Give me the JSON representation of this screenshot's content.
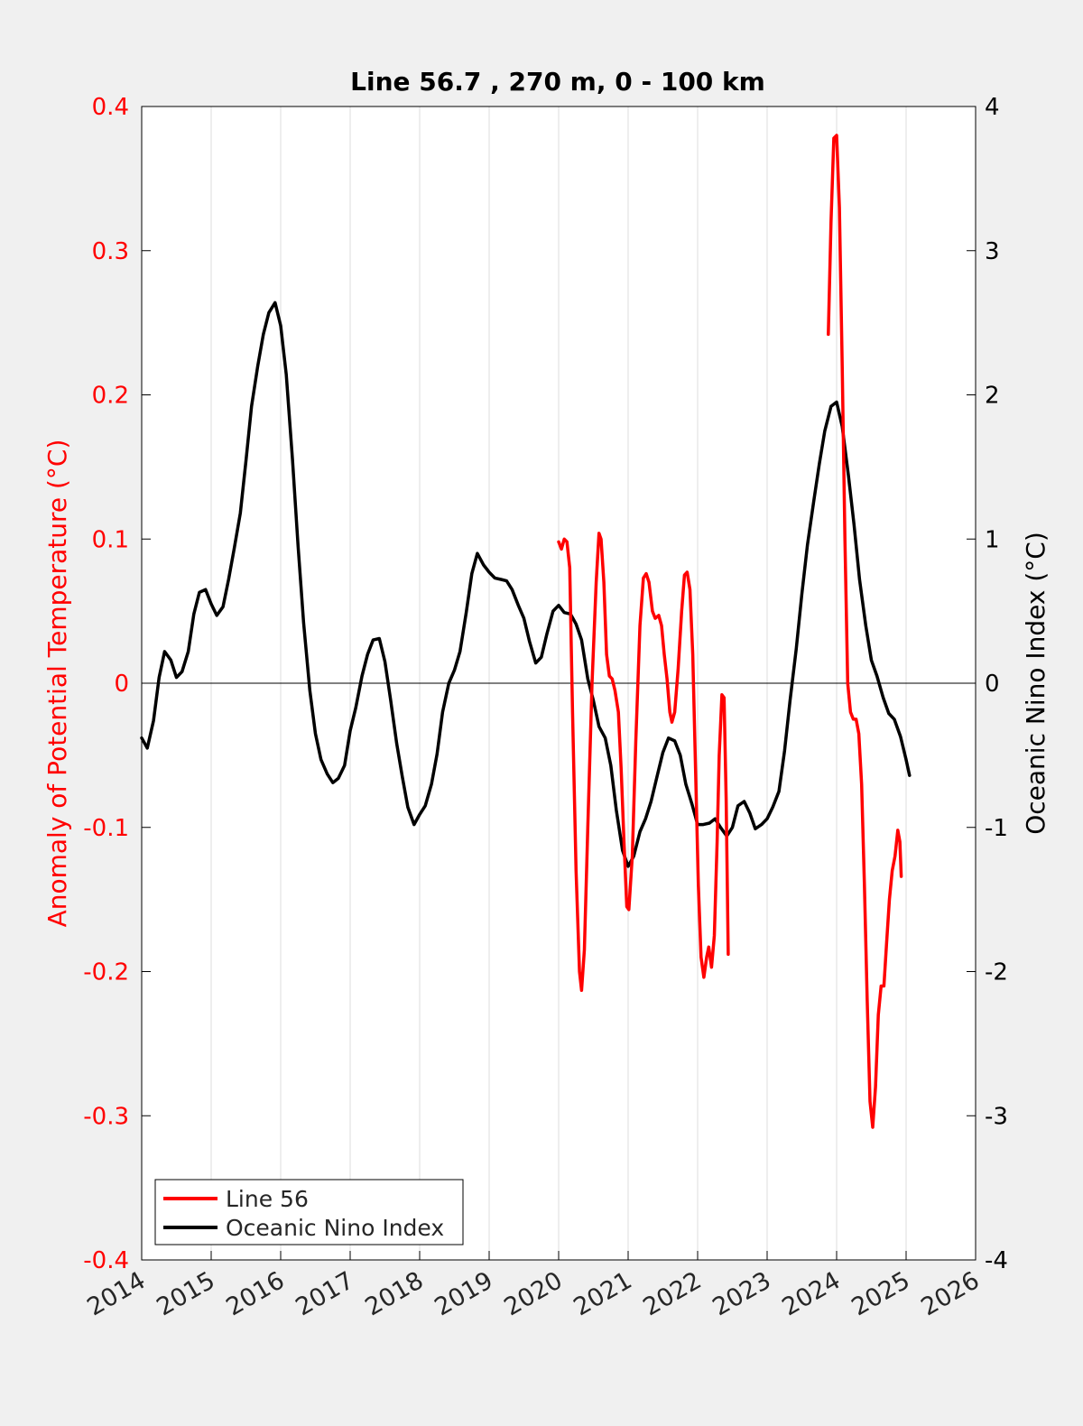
{
  "chart_data": {
    "type": "line",
    "title": "Line 56.7 , 270 m, 0 - 100 km",
    "xlim": [
      2014,
      2026
    ],
    "x_ticks": [
      "2014",
      "2015",
      "2016",
      "2017",
      "2018",
      "2019",
      "2020",
      "2021",
      "2022",
      "2023",
      "2024",
      "2025",
      "2026"
    ],
    "x_tick_values": [
      2014,
      2015,
      2016,
      2017,
      2018,
      2019,
      2020,
      2021,
      2022,
      2023,
      2024,
      2025,
      2026
    ],
    "left_axis": {
      "label": "Anomaly of Potential Temperature (°C)",
      "ylim": [
        -0.4,
        0.4
      ],
      "tick_values": [
        -0.4,
        -0.3,
        -0.2,
        -0.1,
        0,
        0.1,
        0.2,
        0.3,
        0.4
      ],
      "tick_labels": [
        "-0.4",
        "-0.3",
        "-0.2",
        "-0.1",
        "0",
        "0.1",
        "0.2",
        "0.3",
        "0.4"
      ],
      "color": "#ff0000"
    },
    "right_axis": {
      "label": "Oceanic Nino Index (°C)",
      "ylim": [
        -4,
        4
      ],
      "tick_values": [
        -4,
        -3,
        -2,
        -1,
        0,
        1,
        2,
        3,
        4
      ],
      "tick_labels": [
        "-4",
        "-3",
        "-2",
        "-1",
        "0",
        "1",
        "2",
        "3",
        "4"
      ],
      "color": "#000000"
    },
    "grid": "vertical",
    "zero_line": true,
    "legend": {
      "location": "bottom-left",
      "entries": [
        {
          "label": "Line 56",
          "color": "#ff0000"
        },
        {
          "label": "Oceanic Nino Index",
          "color": "#000000"
        }
      ]
    },
    "series": [
      {
        "name": "Line 56",
        "axis": "left",
        "color": "#ff0000",
        "segments": [
          [
            [
              2020.0,
              0.098
            ],
            [
              2020.04,
              0.093
            ],
            [
              2020.08,
              0.1
            ],
            [
              2020.12,
              0.098
            ],
            [
              2020.16,
              0.08
            ],
            [
              2020.2,
              -0.02
            ],
            [
              2020.25,
              -0.13
            ],
            [
              2020.3,
              -0.2
            ],
            [
              2020.33,
              -0.213
            ],
            [
              2020.37,
              -0.185
            ],
            [
              2020.42,
              -0.1
            ],
            [
              2020.48,
              0.0
            ],
            [
              2020.54,
              0.07
            ],
            [
              2020.58,
              0.104
            ],
            [
              2020.61,
              0.1
            ],
            [
              2020.65,
              0.07
            ],
            [
              2020.69,
              0.02
            ],
            [
              2020.73,
              0.005
            ],
            [
              2020.77,
              0.003
            ],
            [
              2020.81,
              -0.005
            ],
            [
              2020.86,
              -0.02
            ],
            [
              2020.9,
              -0.06
            ],
            [
              2020.94,
              -0.11
            ],
            [
              2020.98,
              -0.155
            ],
            [
              2021.01,
              -0.157
            ],
            [
              2021.06,
              -0.12
            ],
            [
              2021.11,
              -0.04
            ],
            [
              2021.17,
              0.04
            ],
            [
              2021.22,
              0.073
            ],
            [
              2021.26,
              0.076
            ],
            [
              2021.3,
              0.07
            ],
            [
              2021.35,
              0.05
            ],
            [
              2021.39,
              0.045
            ],
            [
              2021.44,
              0.047
            ],
            [
              2021.48,
              0.04
            ],
            [
              2021.52,
              0.02
            ],
            [
              2021.56,
              0.003
            ],
            [
              2021.6,
              -0.02
            ],
            [
              2021.63,
              -0.027
            ],
            [
              2021.67,
              -0.02
            ],
            [
              2021.72,
              0.01
            ],
            [
              2021.77,
              0.05
            ],
            [
              2021.81,
              0.075
            ],
            [
              2021.85,
              0.077
            ],
            [
              2021.89,
              0.065
            ],
            [
              2021.93,
              0.02
            ],
            [
              2021.97,
              -0.06
            ],
            [
              2022.01,
              -0.14
            ],
            [
              2022.05,
              -0.19
            ],
            [
              2022.09,
              -0.204
            ],
            [
              2022.13,
              -0.19
            ],
            [
              2022.16,
              -0.183
            ],
            [
              2022.2,
              -0.197
            ],
            [
              2022.24,
              -0.175
            ],
            [
              2022.28,
              -0.11
            ],
            [
              2022.31,
              -0.05
            ],
            [
              2022.35,
              -0.008
            ],
            [
              2022.38,
              -0.01
            ],
            [
              2022.41,
              -0.08
            ],
            [
              2022.43,
              -0.15
            ],
            [
              2022.44,
              -0.188
            ]
          ],
          [
            [
              2023.88,
              0.242
            ],
            [
              2023.92,
              0.32
            ],
            [
              2023.96,
              0.378
            ],
            [
              2024.0,
              0.38
            ],
            [
              2024.04,
              0.33
            ],
            [
              2024.08,
              0.22
            ],
            [
              2024.12,
              0.1
            ],
            [
              2024.16,
              0.0
            ],
            [
              2024.2,
              -0.02
            ],
            [
              2024.24,
              -0.025
            ],
            [
              2024.28,
              -0.025
            ],
            [
              2024.32,
              -0.035
            ],
            [
              2024.36,
              -0.07
            ],
            [
              2024.4,
              -0.14
            ],
            [
              2024.44,
              -0.22
            ],
            [
              2024.48,
              -0.29
            ],
            [
              2024.52,
              -0.308
            ],
            [
              2024.56,
              -0.28
            ],
            [
              2024.6,
              -0.23
            ],
            [
              2024.64,
              -0.21
            ],
            [
              2024.68,
              -0.21
            ],
            [
              2024.72,
              -0.18
            ],
            [
              2024.76,
              -0.15
            ],
            [
              2024.8,
              -0.13
            ],
            [
              2024.84,
              -0.12
            ],
            [
              2024.88,
              -0.102
            ],
            [
              2024.91,
              -0.11
            ],
            [
              2024.93,
              -0.134
            ]
          ]
        ]
      },
      {
        "name": "Oceanic Nino Index",
        "axis": "right",
        "color": "#000000",
        "points": [
          [
            2014.0,
            -0.38
          ],
          [
            2014.08,
            -0.45
          ],
          [
            2014.17,
            -0.26
          ],
          [
            2014.25,
            0.04
          ],
          [
            2014.33,
            0.22
          ],
          [
            2014.42,
            0.16
          ],
          [
            2014.5,
            0.04
          ],
          [
            2014.58,
            0.08
          ],
          [
            2014.67,
            0.22
          ],
          [
            2014.75,
            0.48
          ],
          [
            2014.83,
            0.63
          ],
          [
            2014.92,
            0.65
          ],
          [
            2015.0,
            0.55
          ],
          [
            2015.08,
            0.47
          ],
          [
            2015.17,
            0.53
          ],
          [
            2015.25,
            0.72
          ],
          [
            2015.33,
            0.93
          ],
          [
            2015.42,
            1.18
          ],
          [
            2015.5,
            1.54
          ],
          [
            2015.58,
            1.92
          ],
          [
            2015.67,
            2.2
          ],
          [
            2015.75,
            2.42
          ],
          [
            2015.83,
            2.57
          ],
          [
            2015.92,
            2.64
          ],
          [
            2016.0,
            2.48
          ],
          [
            2016.08,
            2.14
          ],
          [
            2016.17,
            1.55
          ],
          [
            2016.25,
            0.95
          ],
          [
            2016.33,
            0.42
          ],
          [
            2016.42,
            -0.05
          ],
          [
            2016.5,
            -0.35
          ],
          [
            2016.58,
            -0.53
          ],
          [
            2016.67,
            -0.63
          ],
          [
            2016.75,
            -0.69
          ],
          [
            2016.83,
            -0.66
          ],
          [
            2016.92,
            -0.57
          ],
          [
            2017.0,
            -0.33
          ],
          [
            2017.08,
            -0.17
          ],
          [
            2017.17,
            0.05
          ],
          [
            2017.25,
            0.2
          ],
          [
            2017.33,
            0.3
          ],
          [
            2017.42,
            0.31
          ],
          [
            2017.5,
            0.15
          ],
          [
            2017.58,
            -0.11
          ],
          [
            2017.67,
            -0.42
          ],
          [
            2017.75,
            -0.65
          ],
          [
            2017.83,
            -0.86
          ],
          [
            2017.92,
            -0.98
          ],
          [
            2018.0,
            -0.91
          ],
          [
            2018.08,
            -0.85
          ],
          [
            2018.17,
            -0.7
          ],
          [
            2018.25,
            -0.49
          ],
          [
            2018.33,
            -0.2
          ],
          [
            2018.42,
            0.0
          ],
          [
            2018.5,
            0.09
          ],
          [
            2018.58,
            0.22
          ],
          [
            2018.67,
            0.49
          ],
          [
            2018.75,
            0.76
          ],
          [
            2018.83,
            0.9
          ],
          [
            2018.92,
            0.82
          ],
          [
            2019.0,
            0.77
          ],
          [
            2019.08,
            0.73
          ],
          [
            2019.17,
            0.72
          ],
          [
            2019.25,
            0.71
          ],
          [
            2019.33,
            0.65
          ],
          [
            2019.42,
            0.54
          ],
          [
            2019.5,
            0.45
          ],
          [
            2019.58,
            0.29
          ],
          [
            2019.67,
            0.14
          ],
          [
            2019.75,
            0.18
          ],
          [
            2019.83,
            0.34
          ],
          [
            2019.92,
            0.5
          ],
          [
            2020.0,
            0.54
          ],
          [
            2020.08,
            0.49
          ],
          [
            2020.17,
            0.48
          ],
          [
            2020.25,
            0.41
          ],
          [
            2020.33,
            0.3
          ],
          [
            2020.42,
            0.03
          ],
          [
            2020.5,
            -0.12
          ],
          [
            2020.58,
            -0.3
          ],
          [
            2020.67,
            -0.38
          ],
          [
            2020.75,
            -0.57
          ],
          [
            2020.83,
            -0.88
          ],
          [
            2020.92,
            -1.16
          ],
          [
            2021.0,
            -1.27
          ],
          [
            2021.08,
            -1.2
          ],
          [
            2021.17,
            -1.03
          ],
          [
            2021.25,
            -0.94
          ],
          [
            2021.33,
            -0.82
          ],
          [
            2021.42,
            -0.64
          ],
          [
            2021.5,
            -0.48
          ],
          [
            2021.58,
            -0.38
          ],
          [
            2021.67,
            -0.4
          ],
          [
            2021.75,
            -0.5
          ],
          [
            2021.83,
            -0.7
          ],
          [
            2021.92,
            -0.84
          ],
          [
            2022.0,
            -0.98
          ],
          [
            2022.08,
            -0.98
          ],
          [
            2022.17,
            -0.97
          ],
          [
            2022.25,
            -0.94
          ],
          [
            2022.33,
            -1.0
          ],
          [
            2022.42,
            -1.06
          ],
          [
            2022.5,
            -1.0
          ],
          [
            2022.58,
            -0.85
          ],
          [
            2022.67,
            -0.82
          ],
          [
            2022.75,
            -0.9
          ],
          [
            2022.83,
            -1.01
          ],
          [
            2022.92,
            -0.98
          ],
          [
            2023.0,
            -0.94
          ],
          [
            2023.08,
            -0.86
          ],
          [
            2023.17,
            -0.75
          ],
          [
            2023.25,
            -0.47
          ],
          [
            2023.33,
            -0.12
          ],
          [
            2023.42,
            0.24
          ],
          [
            2023.5,
            0.62
          ],
          [
            2023.58,
            0.96
          ],
          [
            2023.67,
            1.26
          ],
          [
            2023.75,
            1.52
          ],
          [
            2023.83,
            1.75
          ],
          [
            2023.92,
            1.92
          ],
          [
            2024.0,
            1.95
          ],
          [
            2024.08,
            1.78
          ],
          [
            2024.17,
            1.44
          ],
          [
            2024.25,
            1.1
          ],
          [
            2024.33,
            0.72
          ],
          [
            2024.42,
            0.4
          ],
          [
            2024.5,
            0.16
          ],
          [
            2024.58,
            0.05
          ],
          [
            2024.67,
            -0.1
          ],
          [
            2024.75,
            -0.21
          ],
          [
            2024.83,
            -0.25
          ],
          [
            2024.92,
            -0.37
          ],
          [
            2025.0,
            -0.53
          ],
          [
            2025.05,
            -0.64
          ]
        ]
      }
    ]
  }
}
